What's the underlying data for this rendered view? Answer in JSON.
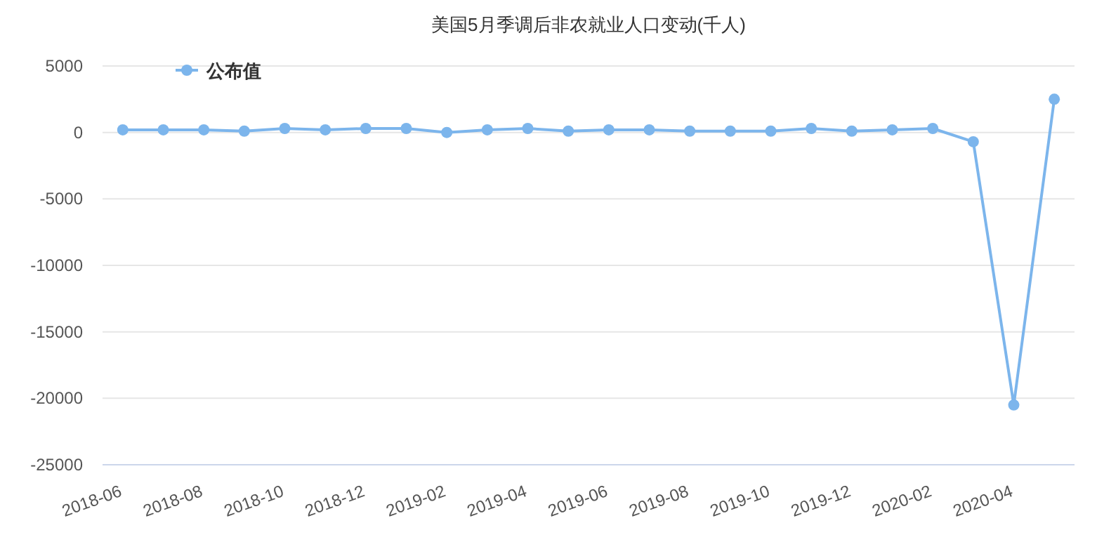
{
  "chart_data": {
    "type": "line",
    "title": "美国5月季调后非农就业人口变动(千人)",
    "categories": [
      "2018-06",
      null,
      "2018-08",
      null,
      "2018-10",
      null,
      "2018-12",
      null,
      "2019-02",
      null,
      "2019-04",
      null,
      "2019-06",
      null,
      "2019-08",
      null,
      "2019-10",
      null,
      "2019-12",
      null,
      "2020-02",
      null,
      "2020-04",
      null
    ],
    "series": [
      {
        "name": "公布值",
        "color": "#7cb5ec",
        "values": [
          200,
          200,
          200,
          100,
          300,
          200,
          300,
          300,
          0,
          200,
          300,
          100,
          200,
          200,
          100,
          100,
          100,
          300,
          100,
          200,
          300,
          -700,
          -20500,
          2500
        ]
      }
    ],
    "ylim": [
      -25000,
      5000
    ],
    "yticks": [
      -25000,
      -20000,
      -15000,
      -10000,
      -5000,
      0,
      5000
    ],
    "grid": "y",
    "legend": "top left",
    "marker": "circle"
  }
}
